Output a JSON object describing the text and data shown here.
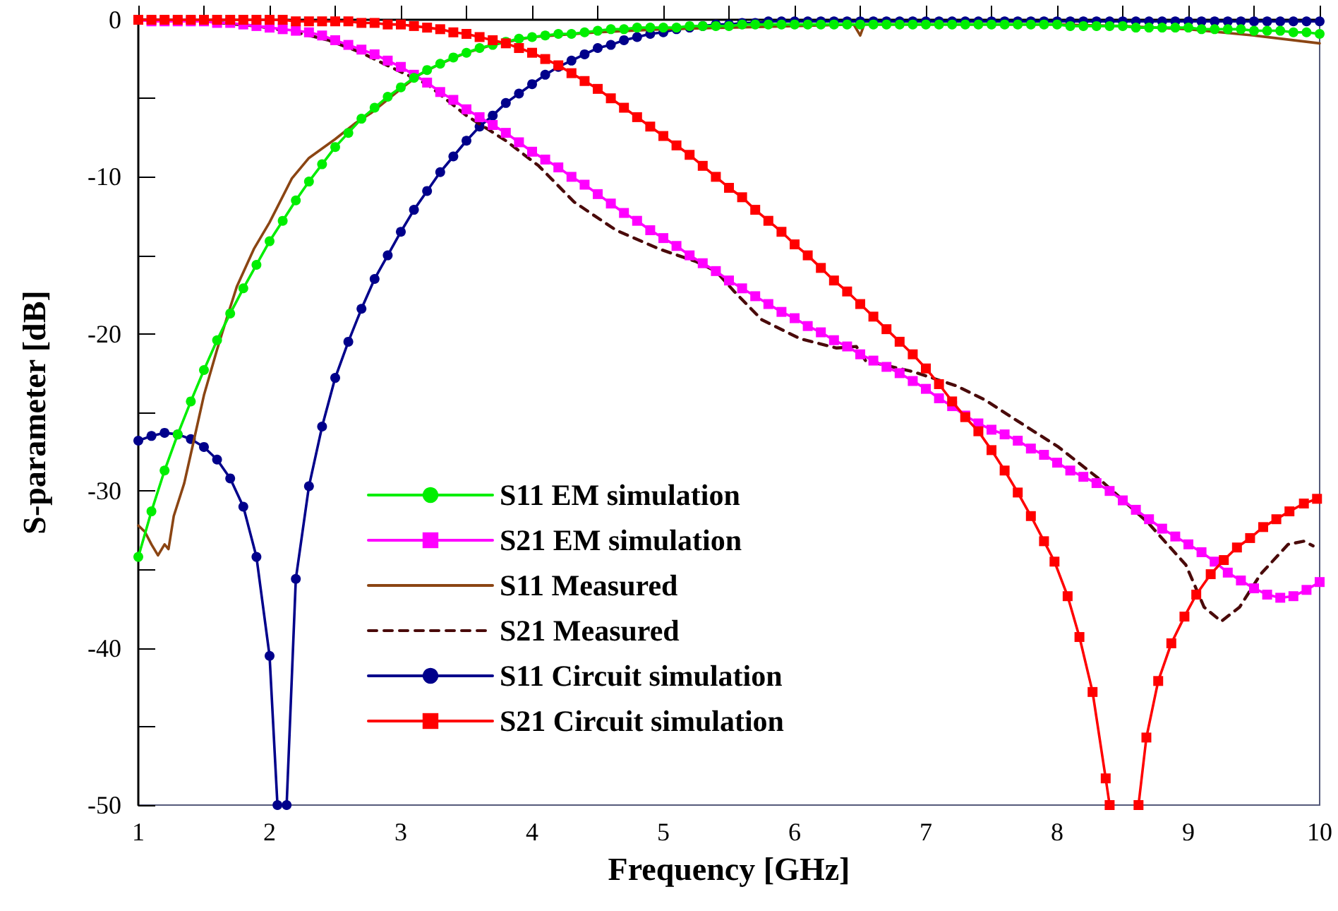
{
  "chart_data": {
    "type": "line",
    "xlabel": "Frequency [GHz]",
    "ylabel": "S-parameter [dB]",
    "xlim": [
      1,
      10
    ],
    "xticks": [
      1,
      {
        "value": 1.5,
        "label": null
      },
      2,
      {
        "value": 2.5,
        "label": null
      },
      3,
      {
        "value": 3.5,
        "label": null
      },
      4,
      {
        "value": 4.5,
        "label": null
      },
      5,
      {
        "value": 5.5,
        "label": null
      },
      6,
      {
        "value": 6.5,
        "label": null
      },
      7,
      {
        "value": 7.5,
        "label": null
      },
      8,
      {
        "value": 8.5,
        "label": null
      },
      9,
      {
        "value": 9.5,
        "label": null
      },
      10
    ],
    "ylim": [
      -50,
      0
    ],
    "yticks": [
      -50,
      {
        "value": -45,
        "label": null
      },
      -40,
      {
        "value": -35,
        "label": null
      },
      -30,
      {
        "value": -25,
        "label": null
      },
      -20,
      {
        "value": -15,
        "label": null
      },
      -10,
      {
        "value": -5,
        "label": null
      },
      0
    ],
    "grid": false,
    "legend": "bottom left",
    "series": [
      {
        "name": "S11 EM simulation",
        "color": "#00ee00",
        "marker": "circle",
        "line_style": "solid",
        "x": [
          1.0,
          1.1,
          1.2,
          1.3,
          1.4,
          1.5,
          1.6,
          1.7,
          1.8,
          1.9,
          2.0,
          2.1,
          2.2,
          2.3,
          2.4,
          2.5,
          2.6,
          2.7,
          2.8,
          2.9,
          3.0,
          3.1,
          3.2,
          3.3,
          3.4,
          3.5,
          3.6,
          3.7,
          3.8,
          3.9,
          4.0,
          4.1,
          4.2,
          4.3,
          4.4,
          4.5,
          4.6,
          4.7,
          4.8,
          4.9,
          5.0,
          5.1,
          5.2,
          5.3,
          5.4,
          5.5,
          5.6,
          5.7,
          5.8,
          5.9,
          6.0,
          6.1,
          6.2,
          6.3,
          6.4,
          6.5,
          6.6,
          6.7,
          6.8,
          6.9,
          7.0,
          7.1,
          7.2,
          7.3,
          7.4,
          7.5,
          7.6,
          7.7,
          7.8,
          7.9,
          8.0,
          8.1,
          8.2,
          8.3,
          8.4,
          8.5,
          8.6,
          8.7,
          8.8,
          8.9,
          9.0,
          9.1,
          9.2,
          9.3,
          9.4,
          9.5,
          9.6,
          9.7,
          9.8,
          9.9,
          10.0
        ],
        "values": [
          -34.2,
          -31.3,
          -28.7,
          -26.4,
          -24.3,
          -22.3,
          -20.4,
          -18.7,
          -17.1,
          -15.6,
          -14.1,
          -12.8,
          -11.5,
          -10.3,
          -9.2,
          -8.1,
          -7.2,
          -6.3,
          -5.6,
          -4.9,
          -4.3,
          -3.7,
          -3.2,
          -2.8,
          -2.4,
          -2.1,
          -1.8,
          -1.6,
          -1.4,
          -1.2,
          -1.1,
          -1.0,
          -0.9,
          -0.9,
          -0.8,
          -0.7,
          -0.6,
          -0.6,
          -0.5,
          -0.5,
          -0.5,
          -0.5,
          -0.4,
          -0.4,
          -0.4,
          -0.4,
          -0.3,
          -0.3,
          -0.3,
          -0.3,
          -0.3,
          -0.3,
          -0.3,
          -0.3,
          -0.3,
          -0.3,
          -0.3,
          -0.3,
          -0.3,
          -0.3,
          -0.3,
          -0.3,
          -0.3,
          -0.3,
          -0.3,
          -0.3,
          -0.3,
          -0.3,
          -0.3,
          -0.3,
          -0.3,
          -0.4,
          -0.4,
          -0.4,
          -0.4,
          -0.4,
          -0.5,
          -0.5,
          -0.5,
          -0.5,
          -0.5,
          -0.6,
          -0.6,
          -0.6,
          -0.6,
          -0.7,
          -0.7,
          -0.7,
          -0.8,
          -0.8,
          -0.9
        ]
      },
      {
        "name": "S21 EM simulation",
        "color": "#ff00ff",
        "marker": "square",
        "line_style": "solid",
        "x": [
          1.0,
          1.1,
          1.2,
          1.3,
          1.4,
          1.5,
          1.6,
          1.7,
          1.8,
          1.9,
          2.0,
          2.1,
          2.2,
          2.3,
          2.4,
          2.5,
          2.6,
          2.7,
          2.8,
          2.9,
          3.0,
          3.1,
          3.2,
          3.3,
          3.4,
          3.5,
          3.6,
          3.7,
          3.8,
          3.9,
          4.0,
          4.1,
          4.2,
          4.3,
          4.4,
          4.5,
          4.6,
          4.7,
          4.8,
          4.9,
          5.0,
          5.1,
          5.2,
          5.3,
          5.4,
          5.5,
          5.6,
          5.7,
          5.8,
          5.9,
          6.0,
          6.1,
          6.2,
          6.3,
          6.4,
          6.5,
          6.6,
          6.7,
          6.8,
          6.9,
          7.0,
          7.1,
          7.2,
          7.3,
          7.4,
          7.5,
          7.6,
          7.7,
          7.8,
          7.9,
          8.0,
          8.1,
          8.2,
          8.3,
          8.4,
          8.5,
          8.6,
          8.7,
          8.8,
          8.9,
          9.0,
          9.1,
          9.2,
          9.3,
          9.4,
          9.5,
          9.6,
          9.7,
          9.8,
          9.9,
          10.0
        ],
        "values": [
          0,
          -0.1,
          -0.1,
          -0.1,
          -0.1,
          -0.1,
          -0.2,
          -0.2,
          -0.3,
          -0.4,
          -0.5,
          -0.6,
          -0.7,
          -0.8,
          -1.0,
          -1.3,
          -1.6,
          -1.9,
          -2.2,
          -2.6,
          -3.0,
          -3.5,
          -4.0,
          -4.6,
          -5.1,
          -5.7,
          -6.2,
          -6.7,
          -7.2,
          -7.8,
          -8.4,
          -8.9,
          -9.4,
          -10.0,
          -10.5,
          -11.1,
          -11.7,
          -12.3,
          -12.8,
          -13.4,
          -13.9,
          -14.4,
          -15.0,
          -15.5,
          -16.0,
          -16.6,
          -17.1,
          -17.6,
          -18.1,
          -18.6,
          -19.0,
          -19.5,
          -19.9,
          -20.4,
          -20.8,
          -21.3,
          -21.7,
          -22.1,
          -22.5,
          -23.0,
          -23.5,
          -24.1,
          -24.6,
          -25.2,
          -25.7,
          -26.1,
          -26.4,
          -26.8,
          -27.3,
          -27.7,
          -28.2,
          -28.7,
          -29.1,
          -29.5,
          -30.0,
          -30.6,
          -31.2,
          -31.8,
          -32.4,
          -32.9,
          -33.4,
          -33.9,
          -34.5,
          -35.2,
          -35.7,
          -36.2,
          -36.6,
          -36.8,
          -36.7,
          -36.3,
          -35.8
        ]
      },
      {
        "name": "S11 Measured",
        "color": "#8b4513",
        "marker": "none",
        "line_style": "solid",
        "x": [
          1.0,
          1.05,
          1.1,
          1.15,
          1.2,
          1.23,
          1.27,
          1.35,
          1.42,
          1.5,
          1.6,
          1.67,
          1.75,
          1.88,
          2.0,
          2.17,
          2.3,
          2.5,
          2.65,
          2.78,
          3.0,
          3.14,
          3.3,
          3.5,
          3.7,
          4.0,
          4.5,
          5.0,
          5.5,
          6.0,
          6.45,
          6.5,
          6.53,
          7.0,
          7.5,
          8.0,
          8.5,
          9.0,
          9.5,
          10.0
        ],
        "values": [
          -32.2,
          -32.6,
          -33.4,
          -34.1,
          -33.4,
          -33.7,
          -31.6,
          -29.5,
          -26.9,
          -23.9,
          -21.0,
          -19.1,
          -17.0,
          -14.6,
          -12.9,
          -10.1,
          -8.8,
          -7.6,
          -6.6,
          -5.9,
          -4.4,
          -3.5,
          -2.8,
          -2.1,
          -1.6,
          -1.1,
          -0.8,
          -0.6,
          -0.5,
          -0.4,
          -0.3,
          -1.0,
          -0.3,
          -0.3,
          -0.3,
          -0.3,
          -0.4,
          -0.6,
          -1.0,
          -1.5
        ]
      },
      {
        "name": "S21 Measured",
        "color": "#4a0a0a",
        "marker": "none",
        "line_style": "dashed",
        "x": [
          1.0,
          1.5,
          1.9,
          2.2,
          2.45,
          2.7,
          2.92,
          3.2,
          3.5,
          3.8,
          4.05,
          4.32,
          4.64,
          4.97,
          5.25,
          5.4,
          5.54,
          5.75,
          6.04,
          6.32,
          6.47,
          6.54,
          6.9,
          7.23,
          7.45,
          7.69,
          8.01,
          8.33,
          8.69,
          8.98,
          9.12,
          9.25,
          9.39,
          9.55,
          9.76,
          9.88,
          9.95
        ],
        "values": [
          0,
          -0.1,
          -0.4,
          -0.8,
          -1.3,
          -2.1,
          -3.0,
          -4.1,
          -6.1,
          -7.7,
          -9.3,
          -11.6,
          -13.4,
          -14.6,
          -15.4,
          -16.0,
          -17.3,
          -19.1,
          -20.3,
          -20.9,
          -20.8,
          -21.7,
          -22.4,
          -23.3,
          -24.2,
          -25.5,
          -27.2,
          -29.3,
          -32.0,
          -34.7,
          -37.4,
          -38.3,
          -37.4,
          -35.3,
          -33.4,
          -33.2,
          -33.5
        ]
      },
      {
        "name": "S11 Circuit simulation",
        "color": "#00008b",
        "marker": "circle",
        "line_style": "solid",
        "x": [
          1.0,
          1.1,
          1.2,
          1.3,
          1.4,
          1.5,
          1.6,
          1.7,
          1.8,
          1.9,
          2.0,
          2.06,
          2.1,
          2.13,
          2.2,
          2.3,
          2.4,
          2.5,
          2.6,
          2.7,
          2.8,
          2.9,
          3.0,
          3.1,
          3.2,
          3.3,
          3.4,
          3.5,
          3.6,
          3.7,
          3.8,
          3.9,
          4.0,
          4.1,
          4.2,
          4.3,
          4.4,
          4.5,
          4.6,
          4.7,
          4.8,
          4.9,
          5.0,
          5.1,
          5.2,
          5.3,
          5.4,
          5.5,
          5.6,
          5.7,
          5.8,
          5.9,
          6.0,
          6.1,
          6.2,
          6.3,
          6.4,
          6.5,
          6.6,
          6.7,
          6.8,
          6.9,
          7.0,
          7.1,
          7.2,
          7.3,
          7.4,
          7.5,
          7.6,
          7.7,
          7.8,
          7.9,
          8.0,
          8.1,
          8.2,
          8.3,
          8.4,
          8.5,
          8.6,
          8.7,
          8.8,
          8.9,
          9.0,
          9.1,
          9.2,
          9.3,
          9.4,
          9.5,
          9.6,
          9.7,
          9.8,
          9.9,
          10.0
        ],
        "values": [
          -26.8,
          -26.5,
          -26.3,
          -26.4,
          -26.7,
          -27.2,
          -28.0,
          -29.2,
          -31.0,
          -34.2,
          -40.5,
          -50,
          null,
          -50,
          -35.6,
          -29.7,
          -25.9,
          -22.8,
          -20.5,
          -18.4,
          -16.5,
          -15.0,
          -13.5,
          -12.1,
          -10.9,
          -9.7,
          -8.7,
          -7.7,
          -6.8,
          -6.1,
          -5.3,
          -4.7,
          -4.1,
          -3.5,
          -3.0,
          -2.6,
          -2.2,
          -1.8,
          -1.6,
          -1.3,
          -1.1,
          -0.9,
          -0.8,
          -0.6,
          -0.5,
          -0.4,
          -0.3,
          -0.3,
          -0.2,
          -0.2,
          -0.1,
          -0.1,
          -0.1,
          -0.1,
          -0.1,
          -0.1,
          -0.1,
          -0.1,
          -0.1,
          -0.1,
          -0.1,
          -0.1,
          -0.1,
          -0.1,
          -0.1,
          -0.1,
          -0.1,
          -0.1,
          -0.1,
          -0.1,
          -0.1,
          -0.1,
          -0.1,
          -0.1,
          -0.1,
          -0.1,
          -0.1,
          -0.1,
          -0.1,
          -0.1,
          -0.1,
          -0.1,
          -0.1,
          -0.1,
          -0.1,
          -0.1,
          -0.1,
          -0.1,
          -0.1,
          -0.1,
          -0.1,
          -0.1,
          -0.1
        ]
      },
      {
        "name": "S21 Circuit simulation",
        "color": "#ff0000",
        "marker": "square",
        "line_style": "solid",
        "x": [
          1.0,
          1.1,
          1.2,
          1.3,
          1.4,
          1.5,
          1.6,
          1.7,
          1.8,
          1.9,
          2.0,
          2.1,
          2.2,
          2.3,
          2.4,
          2.5,
          2.6,
          2.7,
          2.8,
          2.9,
          3.0,
          3.1,
          3.2,
          3.3,
          3.4,
          3.5,
          3.6,
          3.7,
          3.8,
          3.9,
          4.0,
          4.1,
          4.2,
          4.3,
          4.4,
          4.5,
          4.6,
          4.7,
          4.8,
          4.9,
          5.0,
          5.1,
          5.2,
          5.3,
          5.4,
          5.5,
          5.6,
          5.7,
          5.8,
          5.9,
          6.0,
          6.1,
          6.2,
          6.3,
          6.4,
          6.5,
          6.6,
          6.7,
          6.8,
          6.9,
          7.0,
          7.1,
          7.2,
          7.3,
          7.4,
          7.5,
          7.6,
          7.7,
          7.8,
          7.9,
          7.98,
          8.08,
          8.17,
          8.27,
          8.37,
          8.4,
          8.5,
          8.62,
          8.68,
          8.77,
          8.87,
          8.97,
          9.06,
          9.17,
          9.27,
          9.37,
          9.47,
          9.57,
          9.67,
          9.77,
          9.88,
          9.98
        ],
        "values": [
          0,
          0,
          0,
          0,
          0,
          0,
          0,
          0,
          0,
          0,
          0,
          0,
          -0.1,
          -0.1,
          -0.1,
          -0.1,
          -0.1,
          -0.2,
          -0.2,
          -0.3,
          -0.3,
          -0.4,
          -0.5,
          -0.6,
          -0.8,
          -0.9,
          -1.1,
          -1.3,
          -1.5,
          -1.8,
          -2.1,
          -2.5,
          -2.9,
          -3.4,
          -3.9,
          -4.4,
          -5.0,
          -5.6,
          -6.2,
          -6.8,
          -7.4,
          -8.0,
          -8.6,
          -9.3,
          -10.0,
          -10.7,
          -11.3,
          -12.1,
          -12.8,
          -13.5,
          -14.3,
          -15.0,
          -15.8,
          -16.6,
          -17.3,
          -18.1,
          -18.9,
          -19.7,
          -20.5,
          -21.3,
          -22.2,
          -23.2,
          -24.3,
          -25.3,
          -26.2,
          -27.4,
          -28.7,
          -30.1,
          -31.6,
          -33.2,
          -34.5,
          -36.7,
          -39.3,
          -42.8,
          -48.3,
          -50,
          null,
          -50,
          -45.7,
          -42.1,
          -39.7,
          -38.0,
          -36.6,
          -35.3,
          -34.4,
          -33.6,
          -33.0,
          -32.3,
          -31.8,
          -31.3,
          -30.8,
          -30.5
        ]
      }
    ]
  }
}
